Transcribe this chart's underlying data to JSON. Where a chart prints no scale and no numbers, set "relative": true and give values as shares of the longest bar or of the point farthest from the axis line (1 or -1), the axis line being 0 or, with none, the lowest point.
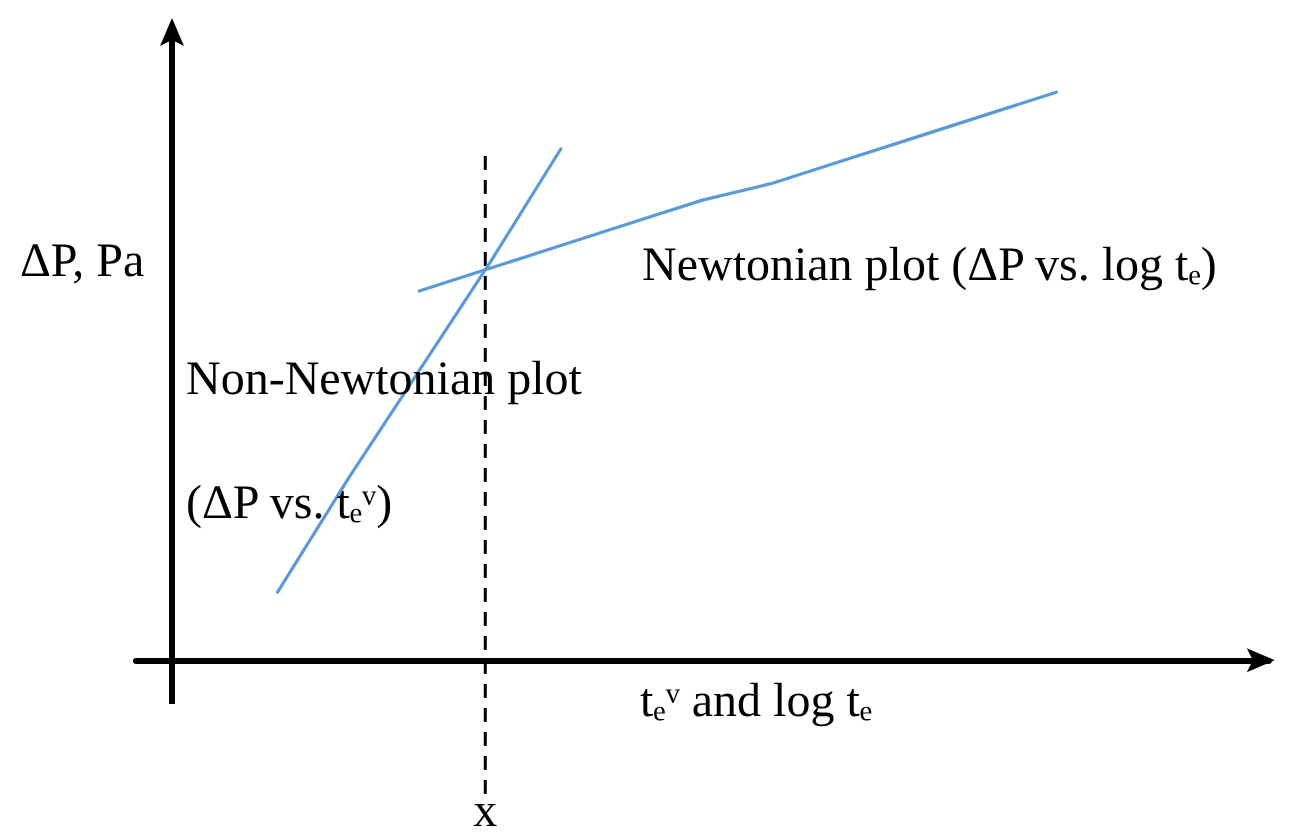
{
  "chart_data": {
    "type": "line",
    "relative": true,
    "xlabel": "tₑᵛ and log tₑ",
    "ylabel": "ΔP, Pa",
    "annotations": [
      "x"
    ],
    "categories": [
      null,
      null,
      null,
      null,
      null,
      null,
      null,
      null,
      null,
      null,
      null,
      null,
      null,
      null,
      null,
      null,
      null
    ],
    "series": [
      {
        "name": "Non-Newtonian plot\n(ΔP vs. tₑᵛ)",
        "color": "#5b9bd5",
        "values": [
          null,
          null,
          0.12,
          0.32,
          0.51,
          0.7,
          0.9,
          null,
          null,
          null,
          null,
          null,
          null,
          null,
          null,
          null,
          null
        ]
      },
      {
        "name": "Newtonian plot (ΔP vs. log tₑ)",
        "color": "#5b9bd5",
        "values": [
          null,
          null,
          null,
          null,
          0.65,
          0.69,
          0.73,
          0.77,
          0.81,
          0.84,
          0.88,
          0.92,
          0.96,
          1.0,
          null,
          null,
          null
        ]
      }
    ],
    "marker": "none",
    "line_style": "solid"
  }
}
